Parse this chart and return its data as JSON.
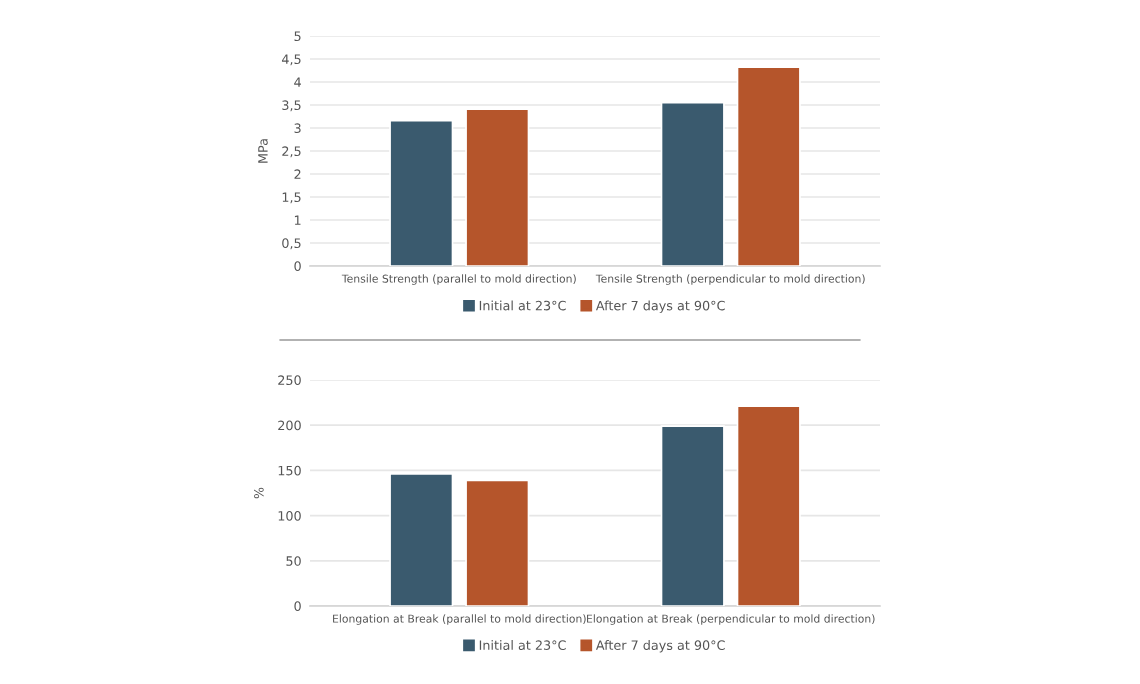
{
  "chart_data": [
    {
      "type": "bar",
      "categories": [
        "Tensile Strength (parallel to mold direction)",
        "Tensile Strength (perpendicular to mold direction)"
      ],
      "ylabel": "MPa",
      "series": [
        {
          "name": "Initial at 23°C",
          "color": "#3a5a6e",
          "values": [
            3.16,
            3.55
          ]
        },
        {
          "name": "After 7 days at 90°C",
          "color": "#b5552b",
          "values": [
            3.41,
            4.32
          ]
        }
      ],
      "ylim": [
        0,
        5
      ],
      "yticks": [
        0,
        {
          "value": 0.5,
          "label": "0,5"
        },
        1,
        {
          "value": 1.5,
          "label": "1,5"
        },
        2,
        {
          "value": 2.5,
          "label": "2,5"
        },
        3,
        {
          "value": 3.5,
          "label": "3,5"
        },
        4,
        {
          "value": 4.5,
          "label": "4,5"
        },
        5
      ],
      "grid": "y",
      "legend": "bottom"
    },
    {
      "type": "bar",
      "categories": [
        "Elongation at Break (parallel to mold direction)",
        "Elongation at Break (perpendicular to mold direction)"
      ],
      "ylabel": "%",
      "series": [
        {
          "name": "Initial at 23°C",
          "color": "#3a5a6e",
          "values": [
            146,
            199
          ]
        },
        {
          "name": "After 7 days at 90°C",
          "color": "#b5552b",
          "values": [
            139,
            221
          ]
        }
      ],
      "ylim": [
        0,
        250
      ],
      "yticks": [
        0,
        50,
        100,
        150,
        200,
        250
      ],
      "grid": "y",
      "legend": "bottom"
    }
  ]
}
